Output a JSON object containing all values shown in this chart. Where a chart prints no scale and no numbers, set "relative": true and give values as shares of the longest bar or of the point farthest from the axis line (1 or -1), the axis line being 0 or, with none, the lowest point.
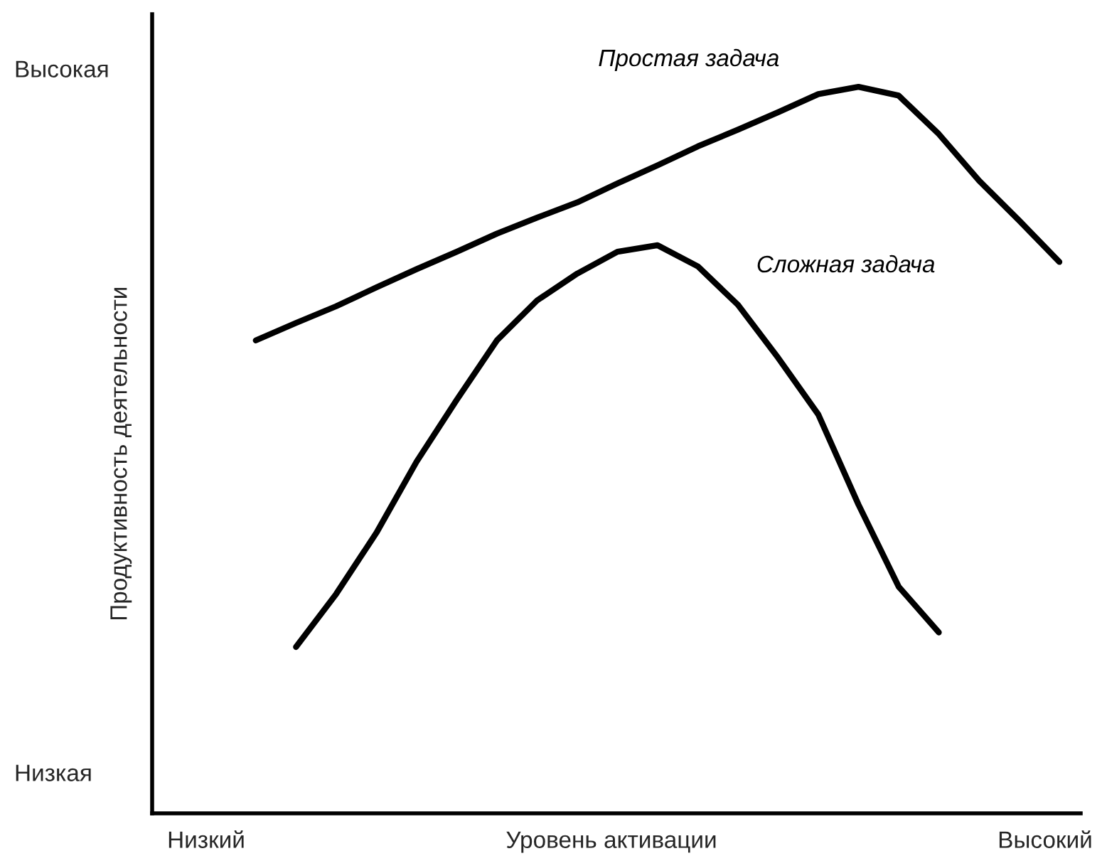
{
  "chart_data": {
    "type": "line",
    "relative": true,
    "xlabel": "Уровень активации",
    "ylabel": "Продуктивность деятельности",
    "annotations": [
      "Высокая",
      "Низкая",
      "Низкий",
      "Высокий"
    ],
    "categories": [
      null,
      null,
      null,
      null,
      null,
      null,
      null,
      null,
      null,
      null,
      null,
      null,
      null,
      null,
      null,
      null,
      null,
      null,
      null,
      null,
      null
    ],
    "series": [
      {
        "name": "Простая задача",
        "color": "#000000",
        "values": [
          0.651,
          0.675,
          0.698,
          0.724,
          0.749,
          0.773,
          0.798,
          0.82,
          0.841,
          0.867,
          0.892,
          0.918,
          0.941,
          0.965,
          0.99,
          1.0,
          0.988,
          0.935,
          0.871,
          0.816,
          0.759
        ]
      },
      {
        "name": "Сложная задача",
        "color": "#000000",
        "values": [
          null,
          0.229,
          0.302,
          0.386,
          0.484,
          0.569,
          0.651,
          0.706,
          0.743,
          0.773,
          0.782,
          0.753,
          0.7,
          0.627,
          0.549,
          0.425,
          0.312,
          0.249,
          null,
          null,
          null
        ]
      }
    ],
    "legend": false
  }
}
